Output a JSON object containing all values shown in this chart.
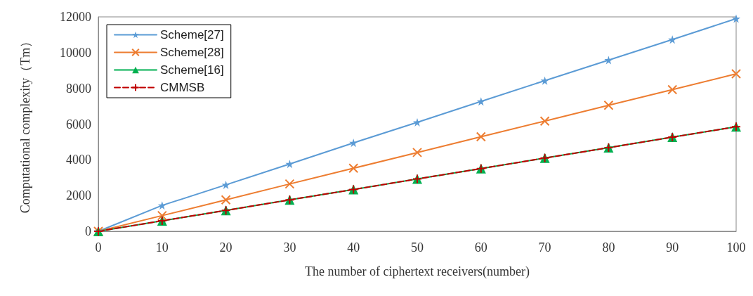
{
  "chart_data": {
    "type": "line",
    "xlabel": "The number of ciphertext receivers(number)",
    "ylabel": "Computational complexity（Tm）",
    "x": [
      0,
      10,
      20,
      30,
      40,
      50,
      60,
      70,
      80,
      90,
      100
    ],
    "xlim": [
      0,
      100
    ],
    "xticks": [
      0,
      10,
      20,
      30,
      40,
      50,
      60,
      70,
      80,
      90,
      100
    ],
    "ylim": [
      0,
      12000
    ],
    "yticks": [
      0,
      2000,
      4000,
      6000,
      8000,
      10000,
      12000
    ],
    "grid": false,
    "legend": "top left",
    "series": [
      {
        "name": "Scheme[27]",
        "color": "#5b9bd5",
        "marker": "star",
        "line_style": "solid",
        "values": [
          0,
          1450,
          2600,
          3770,
          4950,
          6100,
          7270,
          8430,
          9580,
          10730,
          11900
        ]
      },
      {
        "name": "Scheme[28]",
        "color": "#ed7d31",
        "marker": "cross",
        "line_style": "solid",
        "values": [
          0,
          880,
          1760,
          2650,
          3530,
          4410,
          5290,
          6170,
          7050,
          7930,
          8810
        ]
      },
      {
        "name": "Scheme[16]",
        "color": "#00b050",
        "marker": "triangle",
        "line_style": "solid",
        "values": [
          0,
          590,
          1170,
          1760,
          2340,
          2930,
          3510,
          4100,
          4680,
          5270,
          5850
        ]
      },
      {
        "name": "CMMSB",
        "color": "#c00000",
        "marker": "plus",
        "line_style": "dashed",
        "values": [
          0,
          590,
          1170,
          1760,
          2340,
          2930,
          3510,
          4100,
          4680,
          5270,
          5850
        ]
      }
    ]
  }
}
